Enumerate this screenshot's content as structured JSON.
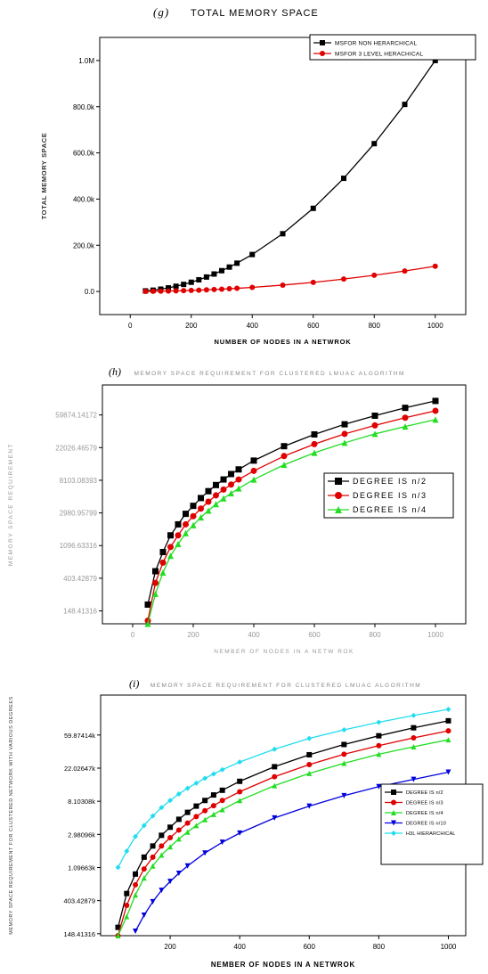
{
  "panels": {
    "g": {
      "tag": "(g)",
      "title": "TOTAL MEMORY SPACE"
    },
    "h": {
      "tag": "(h)",
      "title": "MEMORY SPACE REQUIREMENT FOR CLUSTERED LMUAC ALGORITHM"
    },
    "i": {
      "tag": "(i)",
      "title": "MEMORY SPACE REQUIREMENT FOR CLUSTERED LMUAC ALGORITHM"
    }
  },
  "colors": {
    "black": "#000000",
    "red": "#e00000",
    "green": "#22dd22",
    "blue": "#0000dd",
    "cyan": "#22ddee"
  },
  "chart_data": [
    {
      "id": "g",
      "type": "line",
      "title": "TOTAL MEMORY SPACE",
      "xlabel": "NUMBER OF NODES IN A NETWROK",
      "ylabel": "TOTAL MEMORY SPACE",
      "xlim": [
        -100,
        1100
      ],
      "ylim": [
        -100000,
        1100000
      ],
      "xticks": [
        0,
        200,
        400,
        600,
        800,
        1000
      ],
      "xtick_labels": [
        "0",
        "200",
        "400",
        "600",
        "800",
        "1000"
      ],
      "yticks": [
        0,
        200000,
        400000,
        600000,
        800000,
        1000000
      ],
      "ytick_labels": [
        "0.0",
        "200.0k",
        "400.0k",
        "600.0k",
        "800.0k",
        "1.0M"
      ],
      "legend_position": "top-right",
      "series": [
        {
          "name": "MSFOR NON HERARCHICAL",
          "color": "#000000",
          "marker": "square",
          "x": [
            50,
            75,
            100,
            125,
            150,
            175,
            200,
            225,
            250,
            275,
            300,
            325,
            350,
            400,
            500,
            600,
            700,
            800,
            900,
            1000
          ],
          "y": [
            2500,
            5600,
            10000,
            15600,
            22500,
            30600,
            40000,
            50600,
            62500,
            75600,
            90000,
            105600,
            122500,
            160000,
            250000,
            360000,
            490000,
            640000,
            810000,
            1000000
          ]
        },
        {
          "name": "MSFOR 3 LEVEL HERACHICAL",
          "color": "#e00000",
          "marker": "circle",
          "x": [
            50,
            75,
            100,
            125,
            150,
            175,
            200,
            225,
            250,
            275,
            300,
            325,
            350,
            400,
            500,
            600,
            700,
            800,
            900,
            1000
          ],
          "y": [
            300,
            700,
            1200,
            1800,
            2700,
            3600,
            4600,
            5800,
            7100,
            8500,
            10100,
            11800,
            13600,
            17600,
            27500,
            39500,
            53700,
            70100,
            88700,
            109500
          ]
        }
      ]
    },
    {
      "id": "h",
      "type": "line",
      "title": "MEMORY SPACE REQUIREMENT FOR CLUSTERED LMUAC ALGORITHM",
      "xlabel": "NEMBER OF NODES IN A NETW ROK",
      "ylabel": "MEMORY SPACE REQUIREMENT",
      "yscale": "log",
      "xlim": [
        -100,
        1100
      ],
      "ylim": [
        100,
        150000
      ],
      "xticks": [
        0,
        200,
        400,
        600,
        800,
        1000
      ],
      "xtick_labels": [
        "0",
        "200",
        "400",
        "600",
        "800",
        "1000"
      ],
      "yticks": [
        148.41316,
        403.42879,
        1096.63316,
        2980.95799,
        8103.08393,
        22026.46579,
        59874.14172
      ],
      "ytick_labels": [
        "148.41316",
        "403.42879",
        "1096.63316",
        "2980.95799",
        "8103.08393",
        "22026.46579",
        "59874.14172"
      ],
      "legend_position": "right",
      "series": [
        {
          "name": "DEGREE IS n/2",
          "color": "#000000",
          "marker": "square",
          "x": [
            50,
            75,
            100,
            125,
            150,
            175,
            200,
            225,
            250,
            275,
            300,
            325,
            350,
            400,
            500,
            600,
            700,
            800,
            900,
            1000
          ],
          "y": [
            180,
            500,
            900,
            1500,
            2100,
            2900,
            3700,
            4700,
            5800,
            7000,
            8300,
            9800,
            11300,
            14800,
            23000,
            33000,
            45000,
            58500,
            74500,
            92000
          ]
        },
        {
          "name": "DEGREE IS n/3",
          "color": "#e00000",
          "marker": "circle",
          "x": [
            50,
            75,
            100,
            125,
            150,
            175,
            200,
            225,
            250,
            275,
            300,
            325,
            350,
            400,
            500,
            600,
            700,
            800,
            900,
            1000
          ],
          "y": [
            110,
            350,
            650,
            1050,
            1500,
            2100,
            2700,
            3400,
            4200,
            5100,
            6100,
            7100,
            8300,
            10800,
            17000,
            24500,
            33500,
            43500,
            55000,
            68000
          ]
        },
        {
          "name": "DEGREE IS n/4",
          "color": "#22dd22",
          "marker": "triangle",
          "x": [
            50,
            75,
            100,
            125,
            150,
            175,
            200,
            225,
            250,
            275,
            300,
            325,
            350,
            400,
            500,
            600,
            700,
            800,
            900,
            1000
          ],
          "y": [
            80,
            250,
            480,
            800,
            1150,
            1600,
            2050,
            2600,
            3200,
            3900,
            4650,
            5450,
            6300,
            8300,
            13000,
            18800,
            25500,
            33500,
            42000,
            52000
          ]
        }
      ]
    },
    {
      "id": "i",
      "type": "line",
      "title": "MEMORY SPACE REQUIREMENT FOR CLUSTERED LMUAC ALGORITHM",
      "xlabel": "NEMBER OF NODES IN A NETWROK",
      "ylabel": "MEMORY SPACE REQUIREMENT FOR CLUSTERED NETWORK WITH VARIOUS DEGREES",
      "yscale": "log",
      "xlim": [
        0,
        1050
      ],
      "ylim": [
        140,
        200000
      ],
      "xticks": [
        200,
        400,
        600,
        800,
        1000
      ],
      "xtick_labels": [
        "200",
        "400",
        "600",
        "800",
        "1000"
      ],
      "yticks": [
        148.41316,
        403.42879,
        1096.63,
        2980.96,
        8103.08,
        22026.47,
        59874.14
      ],
      "ytick_labels": [
        "148.41316",
        "403.42879",
        "1.09663k",
        "2.98096k",
        "8.10308k",
        "22.02647k",
        "59.87414k"
      ],
      "legend_position": "right",
      "series": [
        {
          "name": "DEGREE IS n/2",
          "color": "#000000",
          "marker": "square",
          "x": [
            50,
            75,
            100,
            125,
            150,
            175,
            200,
            225,
            250,
            275,
            300,
            325,
            350,
            400,
            500,
            600,
            700,
            800,
            900,
            1000
          ],
          "y": [
            180,
            500,
            900,
            1500,
            2100,
            2900,
            3700,
            4700,
            5800,
            7000,
            8300,
            9800,
            11300,
            14800,
            23000,
            33000,
            45000,
            58500,
            74500,
            92000
          ]
        },
        {
          "name": "DEGREE IS n/3",
          "color": "#e00000",
          "marker": "circle",
          "x": [
            50,
            75,
            100,
            125,
            150,
            175,
            200,
            225,
            250,
            275,
            300,
            325,
            350,
            400,
            500,
            600,
            700,
            800,
            900,
            1000
          ],
          "y": [
            110,
            350,
            650,
            1050,
            1500,
            2100,
            2700,
            3400,
            4200,
            5100,
            6100,
            7100,
            8300,
            10800,
            17000,
            24500,
            33500,
            43500,
            55000,
            68000
          ]
        },
        {
          "name": "DEGREE IS n/4",
          "color": "#22dd22",
          "marker": "triangle",
          "x": [
            50,
            75,
            100,
            125,
            150,
            175,
            200,
            225,
            250,
            275,
            300,
            325,
            350,
            400,
            500,
            600,
            700,
            800,
            900,
            1000
          ],
          "y": [
            80,
            250,
            480,
            800,
            1150,
            1600,
            2050,
            2600,
            3200,
            3900,
            4650,
            5450,
            6300,
            8300,
            13000,
            18800,
            25500,
            33500,
            42000,
            52000
          ]
        },
        {
          "name": "DEGREE IS n/10",
          "color": "#0000dd",
          "marker": "triangle-down",
          "x": [
            100,
            125,
            150,
            175,
            200,
            225,
            250,
            300,
            350,
            400,
            500,
            600,
            700,
            800,
            900,
            1000
          ],
          "y": [
            160,
            260,
            390,
            550,
            720,
            920,
            1150,
            1700,
            2350,
            3100,
            4900,
            7000,
            9600,
            12600,
            15700,
            19500
          ]
        },
        {
          "name": "H3L HIERARCHICAL",
          "color": "#22ddee",
          "marker": "diamond",
          "x": [
            50,
            75,
            100,
            125,
            150,
            175,
            200,
            225,
            250,
            275,
            300,
            325,
            350,
            400,
            500,
            600,
            700,
            800,
            900,
            1000
          ],
          "y": [
            1100,
            1800,
            2800,
            3900,
            5200,
            6700,
            8300,
            10100,
            12000,
            14000,
            16200,
            18500,
            21000,
            26500,
            39000,
            54000,
            70000,
            88000,
            108000,
            130000
          ]
        }
      ]
    }
  ]
}
